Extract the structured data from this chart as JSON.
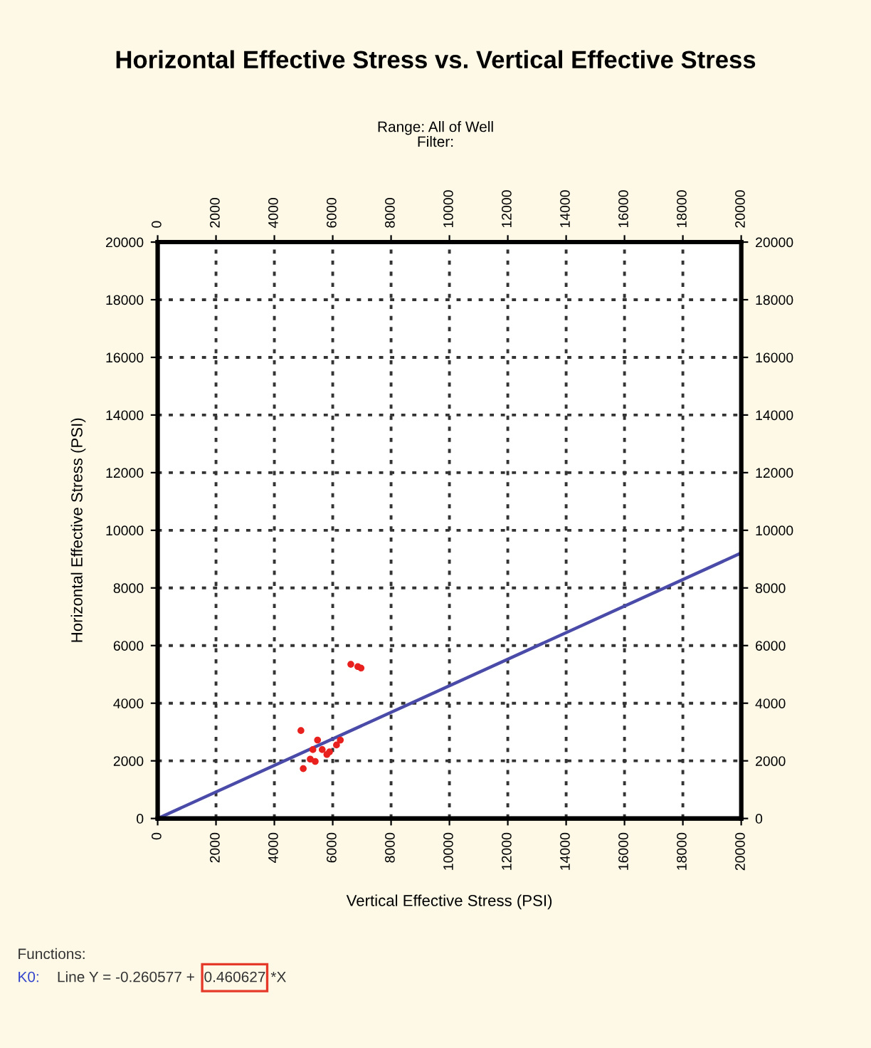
{
  "chart_data": {
    "type": "scatter",
    "title": "Horizontal Effective Stress vs. Vertical Effective Stress",
    "subtitle": "Range: All of Well\nFilter:",
    "xlabel": "Vertical Effective Stress (PSI)",
    "ylabel": "Horizontal Effective Stress (PSI)",
    "series": [
      {
        "color": "#e8211e",
        "marker": "circle",
        "x": [
          6620,
          6860,
          6970,
          4910,
          5480,
          5320,
          5230,
          4990,
          5640,
          5890,
          6130,
          6260,
          5800,
          5400
        ],
        "values": [
          5350,
          5270,
          5220,
          3050,
          2720,
          2390,
          2060,
          1730,
          2390,
          2310,
          2550,
          2720,
          2220,
          1980
        ]
      },
      {
        "type": "line",
        "color": "#4a4aa8",
        "marker": "none",
        "line_style": "solid",
        "x": [
          0,
          20000
        ],
        "values": [
          0,
          9212
        ]
      }
    ],
    "xlim": [
      0,
      20000
    ],
    "xticks": [
      0,
      2000,
      4000,
      6000,
      8000,
      10000,
      12000,
      14000,
      16000,
      18000,
      20000
    ],
    "x2lim": [
      0,
      20000
    ],
    "x2ticks": [
      0,
      2000,
      4000,
      6000,
      8000,
      10000,
      12000,
      14000,
      16000,
      18000,
      20000
    ],
    "ylim": [
      0,
      20000
    ],
    "yticks": [
      0,
      2000,
      4000,
      6000,
      8000,
      10000,
      12000,
      14000,
      16000,
      18000,
      20000
    ],
    "y2lim": [
      0,
      20000
    ],
    "y2ticks": [
      0,
      2000,
      4000,
      6000,
      8000,
      10000,
      12000,
      14000,
      16000,
      18000,
      20000
    ],
    "grid": true,
    "legend": false,
    "annotations": [
      "Functions:",
      "K0:",
      "Line Y = -0.260577 + ",
      "0.460627",
      "*X"
    ]
  }
}
